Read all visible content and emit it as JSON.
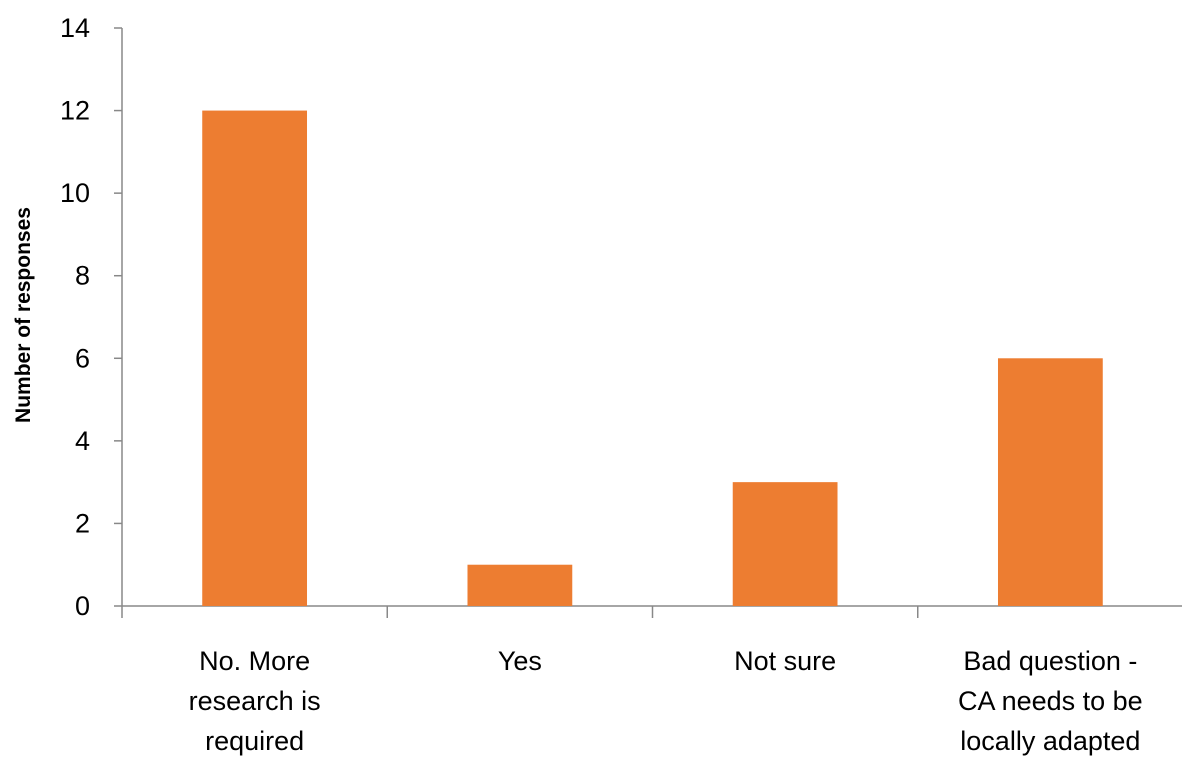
{
  "chart_data": {
    "type": "bar",
    "categories": [
      [
        "No. More",
        "research is",
        "required"
      ],
      [
        "Yes"
      ],
      [
        "Not sure"
      ],
      [
        "Bad question -",
        "CA needs to be",
        "locally adapted"
      ]
    ],
    "values": [
      12,
      1,
      3,
      6
    ],
    "ylabel": "Number of responses",
    "xlabel": "",
    "ylim": [
      0,
      14
    ],
    "yticks": [
      0,
      2,
      4,
      6,
      8,
      10,
      12,
      14
    ],
    "grid": false,
    "legend": "none",
    "bar_color": "#ED7D31",
    "axis_color": "#888888"
  }
}
